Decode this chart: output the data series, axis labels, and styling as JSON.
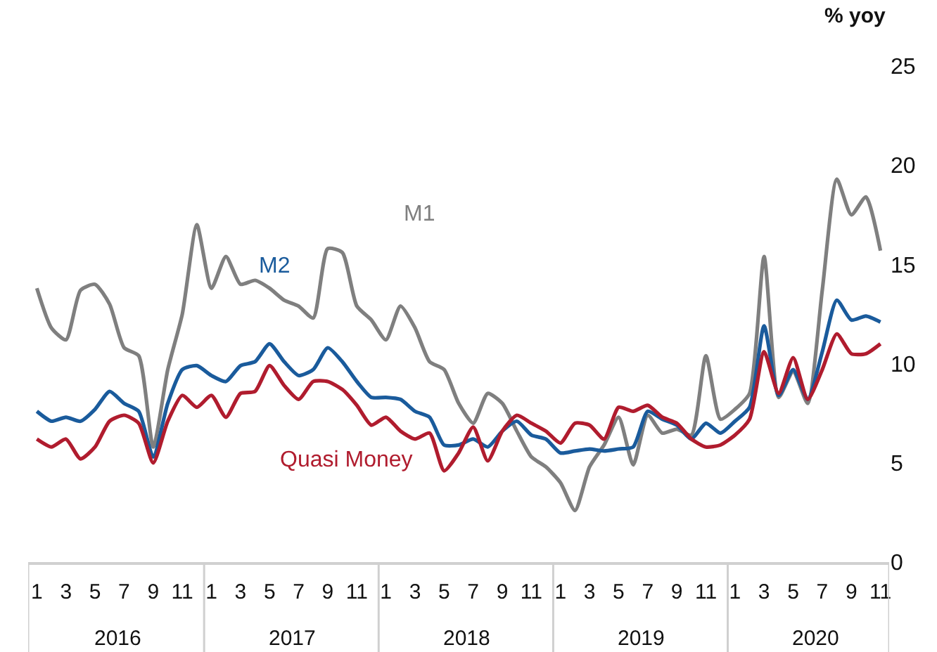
{
  "chart_data": {
    "type": "line",
    "ylabel": "% yoy",
    "categories": [
      "1",
      null,
      "3",
      null,
      "5",
      null,
      "7",
      null,
      "9",
      null,
      "11",
      null,
      "1",
      null,
      "3",
      null,
      "5",
      null,
      "7",
      null,
      "9",
      null,
      "11",
      null,
      "1",
      null,
      "3",
      null,
      "5",
      null,
      "7",
      null,
      "9",
      null,
      "11",
      null,
      "1",
      null,
      "3",
      null,
      "5",
      null,
      "7",
      null,
      "9",
      null,
      "11",
      null,
      "1",
      null,
      "3",
      null,
      "5",
      null,
      "7",
      null,
      "9",
      null,
      "11"
    ],
    "series": [
      {
        "name": "M1",
        "color": "#7f7f7f",
        "values": [
          13.8,
          11.8,
          11.2,
          13.7,
          14.0,
          13.0,
          10.8,
          10.4,
          5.8,
          9.7,
          12.5,
          17.0,
          13.8,
          15.4,
          14.0,
          14.2,
          13.8,
          13.2,
          12.9,
          12.3,
          15.8,
          15.6,
          12.9,
          12.2,
          11.2,
          12.9,
          11.8,
          10.1,
          9.7,
          8.0,
          7.0,
          8.5,
          8.0,
          6.6,
          5.3,
          4.8,
          4.0,
          2.6,
          4.8,
          5.9,
          7.3,
          4.9,
          7.4,
          6.5,
          6.7,
          6.4,
          10.4,
          7.2,
          7.7,
          8.5,
          15.4,
          8.3,
          9.6,
          8.0,
          13.7,
          19.3,
          17.5,
          18.4,
          15.7
        ]
      },
      {
        "name": "M2",
        "color": "#1a5b9c",
        "values": [
          7.6,
          7.1,
          7.3,
          7.1,
          7.7,
          8.6,
          8.0,
          7.6,
          5.3,
          8.0,
          9.7,
          9.9,
          9.4,
          9.1,
          9.9,
          10.1,
          11.0,
          10.1,
          9.4,
          9.7,
          10.8,
          10.1,
          9.1,
          8.3,
          8.3,
          8.2,
          7.6,
          7.3,
          5.9,
          5.9,
          6.2,
          5.8,
          6.6,
          7.1,
          6.4,
          6.2,
          5.5,
          5.6,
          5.7,
          5.6,
          5.7,
          5.8,
          7.6,
          7.2,
          6.9,
          6.2,
          7.0,
          6.5,
          7.1,
          7.8,
          11.9,
          8.4,
          9.7,
          8.2,
          10.6,
          13.2,
          12.2,
          12.4,
          12.1
        ]
      },
      {
        "name": "Quasi Money",
        "color": "#b01c2e",
        "values": [
          6.2,
          5.8,
          6.2,
          5.2,
          5.8,
          7.1,
          7.4,
          7.0,
          5.0,
          7.1,
          8.4,
          7.8,
          8.4,
          7.3,
          8.5,
          8.6,
          9.9,
          8.9,
          8.2,
          9.1,
          9.1,
          8.7,
          7.9,
          6.9,
          7.3,
          6.6,
          6.2,
          6.5,
          4.6,
          5.5,
          6.8,
          5.1,
          6.6,
          7.4,
          7.0,
          6.6,
          6.0,
          7.0,
          6.9,
          6.2,
          7.8,
          7.6,
          7.9,
          7.3,
          7.0,
          6.2,
          5.8,
          5.9,
          6.4,
          7.2,
          10.6,
          8.5,
          10.3,
          8.2,
          9.7,
          11.5,
          10.5,
          10.5,
          11.0
        ]
      }
    ],
    "annotations": [
      "2016",
      "2017",
      "2018",
      "2019",
      "2020"
    ],
    "ylim": [
      0,
      25
    ],
    "yticks": [
      0,
      5,
      10,
      15,
      20,
      25
    ],
    "line_style": "solid",
    "marker": "none"
  }
}
